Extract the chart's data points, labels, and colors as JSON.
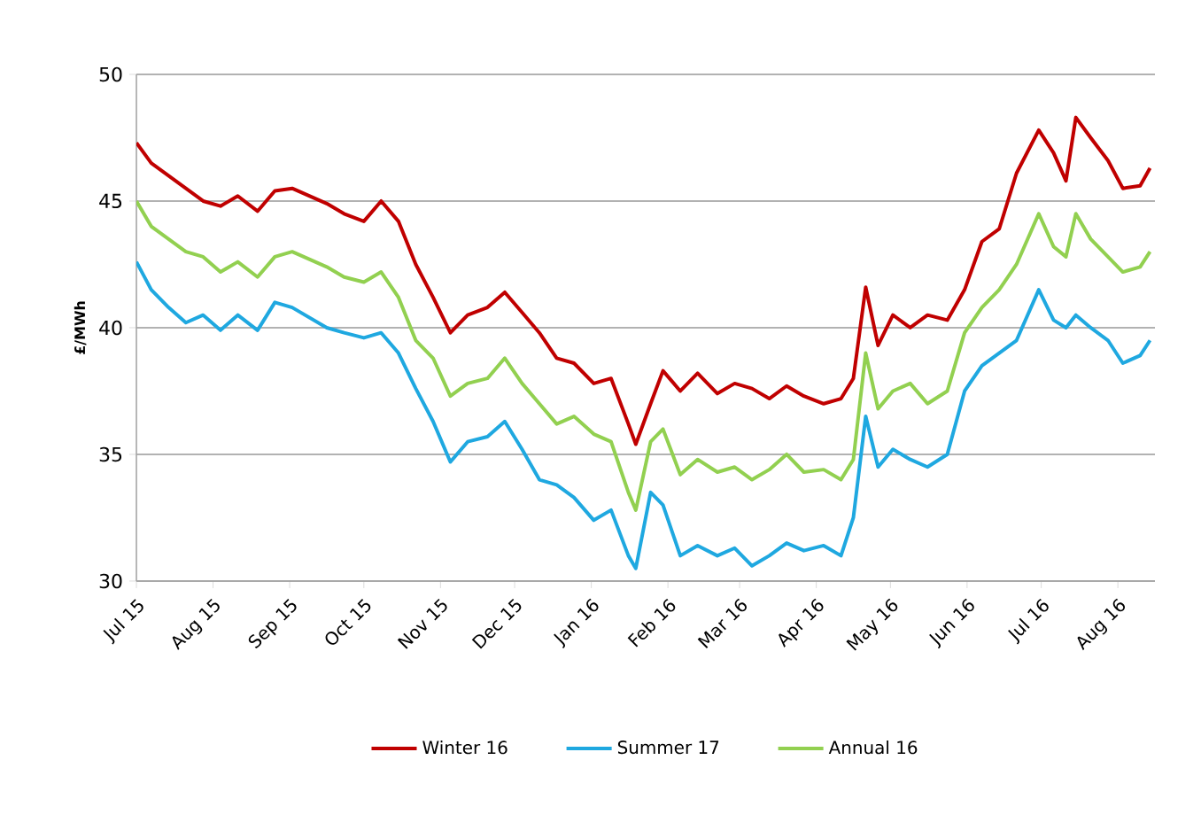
{
  "chart_data": {
    "type": "line",
    "ylabel": "£/MWh",
    "ylim": [
      30,
      50
    ],
    "yticks": [
      30,
      35,
      40,
      45,
      50
    ],
    "grid": "y",
    "legend": "bottom",
    "marker": "none",
    "line_style": "solid",
    "xlim": [
      "2015-07-01",
      "2016-08-16"
    ],
    "xticks": [
      {
        "value": "2015-07-01",
        "label": "Jul 15"
      },
      {
        "value": "2015-08-01",
        "label": "Aug 15"
      },
      {
        "value": "2015-09-01",
        "label": "Sep 15"
      },
      {
        "value": "2015-10-01",
        "label": "Oct 15"
      },
      {
        "value": "2015-11-01",
        "label": "Nov 15"
      },
      {
        "value": "2015-12-01",
        "label": "Dec 15"
      },
      {
        "value": "2016-01-01",
        "label": "Jan 16"
      },
      {
        "value": "2016-02-01",
        "label": "Feb 16"
      },
      {
        "value": "2016-03-01",
        "label": "Mar 16"
      },
      {
        "value": "2016-04-01",
        "label": "Apr 16"
      },
      {
        "value": "2016-05-01",
        "label": "May 16"
      },
      {
        "value": "2016-06-01",
        "label": "Jun 16"
      },
      {
        "value": "2016-07-01",
        "label": "Jul 16"
      },
      {
        "value": "2016-08-01",
        "label": "Aug 16"
      }
    ],
    "x": [
      "2015-07-01",
      "2015-07-07",
      "2015-07-14",
      "2015-07-21",
      "2015-07-28",
      "2015-08-04",
      "2015-08-11",
      "2015-08-19",
      "2015-08-26",
      "2015-09-02",
      "2015-09-09",
      "2015-09-16",
      "2015-09-23",
      "2015-10-01",
      "2015-10-08",
      "2015-10-15",
      "2015-10-22",
      "2015-10-29",
      "2015-11-05",
      "2015-11-12",
      "2015-11-20",
      "2015-11-27",
      "2015-12-04",
      "2015-12-11",
      "2015-12-18",
      "2015-12-25",
      "2016-01-02",
      "2016-01-09",
      "2016-01-16",
      "2016-01-19",
      "2016-01-25",
      "2016-01-30",
      "2016-02-06",
      "2016-02-13",
      "2016-02-21",
      "2016-02-28",
      "2016-03-06",
      "2016-03-13",
      "2016-03-20",
      "2016-03-27",
      "2016-04-04",
      "2016-04-11",
      "2016-04-16",
      "2016-04-21",
      "2016-04-26",
      "2016-05-02",
      "2016-05-09",
      "2016-05-16",
      "2016-05-24",
      "2016-05-31",
      "2016-06-07",
      "2016-06-14",
      "2016-06-21",
      "2016-06-30",
      "2016-07-06",
      "2016-07-11",
      "2016-07-15",
      "2016-07-21",
      "2016-07-28",
      "2016-08-03",
      "2016-08-10",
      "2016-08-14"
    ],
    "series": [
      {
        "name": "Winter 16",
        "color": "#c00000",
        "values": [
          47.3,
          46.5,
          46.0,
          45.5,
          45.0,
          44.8,
          45.2,
          44.6,
          45.4,
          45.5,
          45.2,
          44.9,
          44.5,
          44.2,
          45.0,
          44.2,
          42.5,
          41.2,
          39.8,
          40.5,
          40.8,
          41.4,
          40.6,
          39.8,
          38.8,
          38.6,
          37.8,
          38.0,
          36.2,
          35.4,
          37.0,
          38.3,
          37.5,
          38.2,
          37.4,
          37.8,
          37.6,
          37.2,
          37.7,
          37.3,
          37.0,
          37.2,
          38.0,
          41.6,
          39.3,
          40.5,
          40.0,
          40.5,
          40.3,
          41.5,
          43.4,
          43.9,
          46.1,
          47.8,
          46.9,
          45.8,
          48.3,
          47.5,
          46.6,
          45.5,
          45.6,
          46.3
        ]
      },
      {
        "name": "Summer 17",
        "color": "#1fa8e0",
        "values": [
          42.6,
          41.5,
          40.8,
          40.2,
          40.5,
          39.9,
          40.5,
          39.9,
          41.0,
          40.8,
          40.4,
          40.0,
          39.8,
          39.6,
          39.8,
          39.0,
          37.6,
          36.3,
          34.7,
          35.5,
          35.7,
          36.3,
          35.2,
          34.0,
          33.8,
          33.3,
          32.4,
          32.8,
          31.0,
          30.5,
          33.5,
          33.0,
          31.0,
          31.4,
          31.0,
          31.3,
          30.6,
          31.0,
          31.5,
          31.2,
          31.4,
          31.0,
          32.5,
          36.5,
          34.5,
          35.2,
          34.8,
          34.5,
          35.0,
          37.5,
          38.5,
          39.0,
          39.5,
          41.5,
          40.3,
          40.0,
          40.5,
          40.0,
          39.5,
          38.6,
          38.9,
          39.5
        ]
      },
      {
        "name": "Annual 16",
        "color": "#92d050",
        "values": [
          45.0,
          44.0,
          43.5,
          43.0,
          42.8,
          42.2,
          42.6,
          42.0,
          42.8,
          43.0,
          42.7,
          42.4,
          42.0,
          41.8,
          42.2,
          41.2,
          39.5,
          38.8,
          37.3,
          37.8,
          38.0,
          38.8,
          37.8,
          37.0,
          36.2,
          36.5,
          35.8,
          35.5,
          33.5,
          32.8,
          35.5,
          36.0,
          34.2,
          34.8,
          34.3,
          34.5,
          34.0,
          34.4,
          35.0,
          34.3,
          34.4,
          34.0,
          34.8,
          39.0,
          36.8,
          37.5,
          37.8,
          37.0,
          37.5,
          39.8,
          40.8,
          41.5,
          42.5,
          44.5,
          43.2,
          42.8,
          44.5,
          43.5,
          42.8,
          42.2,
          42.4,
          43.0
        ]
      }
    ]
  }
}
